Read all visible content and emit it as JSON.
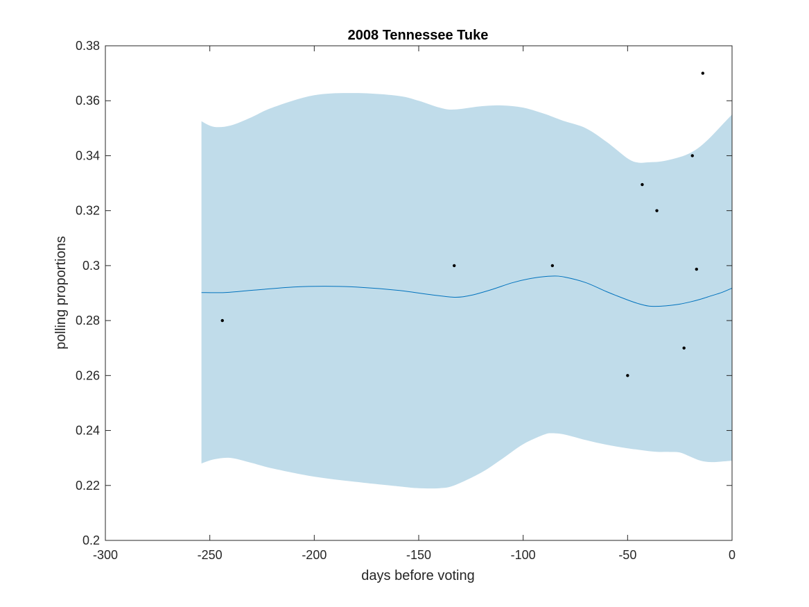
{
  "chart_data": {
    "type": "line",
    "title": "2008 Tennessee Tuke",
    "xlabel": "days before voting",
    "ylabel": "polling proportions",
    "xlim": [
      -300,
      0
    ],
    "ylim": [
      0.2,
      0.38
    ],
    "xticks": [
      -300,
      -250,
      -200,
      -150,
      -100,
      -50,
      0
    ],
    "xtick_labels": [
      "-300",
      "-250",
      "-200",
      "-150",
      "-100",
      "-50",
      "0"
    ],
    "yticks": [
      0.2,
      0.22,
      0.24,
      0.26,
      0.28,
      0.3,
      0.32,
      0.34,
      0.36,
      0.38
    ],
    "ytick_labels": [
      "0.2",
      "0.22",
      "0.24",
      "0.26",
      "0.28",
      "0.3",
      "0.32",
      "0.34",
      "0.36",
      "0.38"
    ],
    "grid": false,
    "colors": {
      "band": "#c0dcea",
      "line": "#0072bd",
      "points": "#000000",
      "axes": "#262626"
    },
    "series": [
      {
        "type": "area_band",
        "x": [
          -254,
          -248,
          -240,
          -230,
          -220,
          -200,
          -180,
          -160,
          -150,
          -140,
          -133,
          -120,
          -110,
          -100,
          -90,
          -86,
          -80,
          -70,
          -60,
          -50,
          -45,
          -40,
          -35,
          -30,
          -25,
          -20,
          -15,
          -10,
          -5,
          0
        ],
        "upper": [
          0.3525,
          0.3505,
          0.351,
          0.354,
          0.3575,
          0.362,
          0.3628,
          0.3618,
          0.36,
          0.3575,
          0.3568,
          0.358,
          0.3583,
          0.3575,
          0.3553,
          0.3542,
          0.3525,
          0.35,
          0.345,
          0.339,
          0.3375,
          0.3376,
          0.3378,
          0.3385,
          0.3395,
          0.341,
          0.3435,
          0.347,
          0.351,
          0.355
        ],
        "lower": [
          0.228,
          0.2295,
          0.23,
          0.2282,
          0.2262,
          0.2232,
          0.2213,
          0.2197,
          0.219,
          0.219,
          0.22,
          0.2247,
          0.2297,
          0.235,
          0.2385,
          0.239,
          0.2385,
          0.2365,
          0.2348,
          0.2335,
          0.233,
          0.2325,
          0.2322,
          0.2322,
          0.232,
          0.2305,
          0.229,
          0.2285,
          0.2287,
          0.229
        ]
      },
      {
        "type": "line",
        "x": [
          -254,
          -243,
          -230,
          -210,
          -195,
          -180,
          -160,
          -145,
          -133,
          -125,
          -115,
          -105,
          -95,
          -86,
          -80,
          -70,
          -60,
          -50,
          -45,
          -40,
          -35,
          -30,
          -25,
          -20,
          -15,
          -10,
          -5,
          0
        ],
        "y": [
          0.2902,
          0.2902,
          0.291,
          0.2922,
          0.2925,
          0.2922,
          0.291,
          0.2895,
          0.2885,
          0.2892,
          0.2913,
          0.2938,
          0.2955,
          0.2962,
          0.2958,
          0.2938,
          0.2905,
          0.2875,
          0.2862,
          0.2853,
          0.2852,
          0.2855,
          0.286,
          0.2868,
          0.2878,
          0.289,
          0.2902,
          0.2918
        ]
      },
      {
        "type": "scatter",
        "x": [
          -244,
          -133,
          -86,
          -50,
          -43,
          -36,
          -23,
          -19,
          -17,
          -14
        ],
        "y": [
          0.28,
          0.3,
          0.3,
          0.26,
          0.3295,
          0.32,
          0.27,
          0.34,
          0.2987,
          0.37
        ]
      }
    ]
  }
}
